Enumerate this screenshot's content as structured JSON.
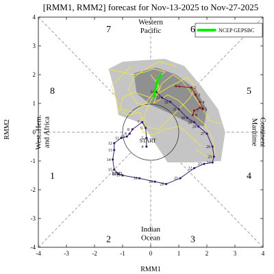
{
  "chart_data": {
    "type": "scatter",
    "title": "[RMM1, RMM2] forecast for Nov-13-2025 to Nov-27-2025",
    "xlabel": "RMM1",
    "ylabel": "RMM2",
    "xlim": [
      -4,
      4
    ],
    "ylim": [
      -4,
      4
    ],
    "xticks": [
      "-4",
      "-3",
      "-2",
      "-1",
      "0",
      "1",
      "2",
      "3",
      "4"
    ],
    "yticks": [
      "-4",
      "-3",
      "-2",
      "-1",
      "0",
      "1",
      "2",
      "3",
      "4"
    ],
    "phase_labels": [
      {
        "phase": "1",
        "x": -3.5,
        "y": -1.5
      },
      {
        "phase": "2",
        "x": -1.5,
        "y": -3.7
      },
      {
        "phase": "3",
        "x": 1.5,
        "y": -3.7
      },
      {
        "phase": "4",
        "x": 3.5,
        "y": -1.5
      },
      {
        "phase": "5",
        "x": 3.5,
        "y": 1.45
      },
      {
        "phase": "6",
        "x": 1.5,
        "y": 3.6
      },
      {
        "phase": "7",
        "x": -1.5,
        "y": 3.6
      },
      {
        "phase": "8",
        "x": -3.5,
        "y": 1.45
      }
    ],
    "region_labels": {
      "top": [
        "Western",
        "Pacific"
      ],
      "bottom": [
        "Indian",
        "Ocean"
      ],
      "left": [
        "West. Hem.",
        "and Africa"
      ],
      "right": [
        "Maritime",
        "Continent"
      ]
    },
    "legend": {
      "label": "NCEP GEPSBC",
      "color": "#00ee00",
      "position": "top-right"
    },
    "start_label": "START",
    "end_label": "END",
    "observed_series": {
      "name": "",
      "color": "#3a1a7a",
      "points": [
        {
          "label": "4",
          "x": -0.15,
          "y": -0.5
        },
        {
          "label": "5",
          "x": -0.15,
          "y": -0.2
        },
        {
          "label": "6",
          "x": -0.18,
          "y": 0.15
        },
        {
          "label": "7",
          "x": -0.3,
          "y": 0.35
        },
        {
          "label": "8",
          "x": -0.65,
          "y": 0.1
        },
        {
          "label": "9",
          "x": -0.75,
          "y": -0.05
        },
        {
          "label": "10",
          "x": -0.85,
          "y": -0.15
        },
        {
          "label": "11",
          "x": -1.05,
          "y": -0.2
        },
        {
          "label": "12",
          "x": -1.3,
          "y": -0.38
        },
        {
          "label": "13",
          "x": -1.3,
          "y": -0.62
        },
        {
          "label": "14",
          "x": -1.35,
          "y": -0.95
        },
        {
          "label": "15",
          "x": -1.3,
          "y": -1.3
        },
        {
          "label": "16",
          "x": -1.15,
          "y": -1.45
        },
        {
          "label": "17",
          "x": -1.0,
          "y": -1.5
        },
        {
          "label": "18",
          "x": -0.4,
          "y": -1.6
        },
        {
          "label": "19",
          "x": 0.15,
          "y": -1.72
        },
        {
          "label": "20",
          "x": 0.55,
          "y": -1.8
        },
        {
          "label": "21",
          "x": 1.05,
          "y": -1.6
        },
        {
          "label": "22",
          "x": 1.55,
          "y": -1.25
        },
        {
          "label": "23",
          "x": 1.9,
          "y": -1.1
        },
        {
          "label": "24",
          "x": 2.2,
          "y": -1.05
        },
        {
          "label": "25",
          "x": 2.25,
          "y": -0.85
        },
        {
          "label": "26",
          "x": 2.2,
          "y": -0.5
        },
        {
          "label": "27",
          "x": 2.0,
          "y": -0.05
        },
        {
          "label": "28",
          "x": 1.7,
          "y": 0.2
        },
        {
          "label": "29",
          "x": 1.55,
          "y": 0.35
        },
        {
          "label": "30",
          "x": 1.3,
          "y": 0.5
        },
        {
          "label": "31",
          "x": 1.0,
          "y": 0.8
        },
        {
          "label": "32",
          "x": 0.7,
          "y": 1.05
        },
        {
          "label": "33",
          "x": 0.4,
          "y": 1.2
        },
        {
          "label": "34",
          "x": 0.2,
          "y": 1.4
        }
      ]
    },
    "forecast_series": {
      "name": "",
      "color": "#8b1a1a",
      "points": [
        {
          "label": "1",
          "x": 0.9,
          "y": 1.6
        },
        {
          "label": "2",
          "x": 1.45,
          "y": 1.55
        },
        {
          "label": "3",
          "x": 1.6,
          "y": 1.3
        },
        {
          "label": "4",
          "x": 1.75,
          "y": 1.05
        },
        {
          "label": "5",
          "x": 1.85,
          "y": 0.8
        },
        {
          "label": "6",
          "x": 1.75,
          "y": 0.85
        },
        {
          "label": "7",
          "x": 1.55,
          "y": 0.75
        },
        {
          "label": "8",
          "x": 1.5,
          "y": 0.6
        }
      ]
    },
    "ensemble_mean": [
      {
        "x": 0.1,
        "y": 1.2
      },
      {
        "x": 0.15,
        "y": 1.45
      },
      {
        "x": 0.2,
        "y": 1.65
      },
      {
        "x": 0.25,
        "y": 1.8
      },
      {
        "x": 0.3,
        "y": 1.9
      },
      {
        "x": 0.35,
        "y": 1.95
      },
      {
        "x": 0.4,
        "y": 2.0
      }
    ],
    "outer_band": [
      [
        -1.5,
        2.2
      ],
      [
        -1.0,
        2.45
      ],
      [
        -0.3,
        2.5
      ],
      [
        0.5,
        2.55
      ],
      [
        1.2,
        2.3
      ],
      [
        1.8,
        1.6
      ],
      [
        2.4,
        0.8
      ],
      [
        2.65,
        0.0
      ],
      [
        2.5,
        -1.0
      ],
      [
        1.5,
        -1.05
      ],
      [
        0.6,
        -1.05
      ],
      [
        0.1,
        -0.3
      ],
      [
        -0.3,
        0.3
      ],
      [
        -1.15,
        0.6
      ],
      [
        -1.3,
        1.5
      ]
    ],
    "inner_band": [
      [
        -0.6,
        2.05
      ],
      [
        0.2,
        2.25
      ],
      [
        0.9,
        2.0
      ],
      [
        1.6,
        1.5
      ],
      [
        2.0,
        0.8
      ],
      [
        1.9,
        0.2
      ],
      [
        1.3,
        0.35
      ],
      [
        0.7,
        0.65
      ],
      [
        0.0,
        0.95
      ],
      [
        -0.5,
        1.35
      ]
    ],
    "ensemble_members": [
      [
        [
          -0.3,
          0.4
        ],
        [
          0.0,
          1.1
        ],
        [
          0.3,
          1.5
        ],
        [
          0.2,
          1.8
        ],
        [
          0.5,
          2.1
        ],
        [
          0.1,
          2.2
        ],
        [
          -0.2,
          2.1
        ],
        [
          -0.6,
          2.0
        ],
        [
          -1.1,
          2.1
        ],
        [
          -1.5,
          2.2
        ]
      ],
      [
        [
          -0.3,
          0.4
        ],
        [
          -0.4,
          0.7
        ],
        [
          -0.8,
          0.6
        ],
        [
          -1.15,
          0.75
        ],
        [
          -1.2,
          1.1
        ],
        [
          -1.4,
          1.6
        ],
        [
          -1.1,
          1.9
        ],
        [
          -0.7,
          2.3
        ]
      ],
      [
        [
          0.1,
          1.0
        ],
        [
          0.6,
          1.3
        ],
        [
          1.0,
          1.1
        ],
        [
          1.4,
          0.7
        ],
        [
          1.9,
          0.3
        ],
        [
          2.2,
          -0.2
        ],
        [
          2.3,
          -0.7
        ],
        [
          2.0,
          -0.85
        ],
        [
          1.6,
          -0.6
        ]
      ],
      [
        [
          0.1,
          1.0
        ],
        [
          0.4,
          1.7
        ],
        [
          0.8,
          2.0
        ],
        [
          1.1,
          1.8
        ],
        [
          1.5,
          1.3
        ],
        [
          1.8,
          0.9
        ],
        [
          2.1,
          0.4
        ],
        [
          2.5,
          0.3
        ]
      ],
      [
        [
          0.0,
          0.9
        ],
        [
          -0.5,
          1.0
        ],
        [
          -0.8,
          1.5
        ],
        [
          -0.6,
          1.9
        ],
        [
          -0.2,
          2.2
        ],
        [
          0.3,
          2.45
        ],
        [
          0.9,
          2.3
        ]
      ],
      [
        [
          -0.2,
          0.5
        ],
        [
          -0.3,
          0.0
        ],
        [
          0.1,
          -0.1
        ],
        [
          0.5,
          0.1
        ],
        [
          1.0,
          0.2
        ],
        [
          1.5,
          -0.2
        ],
        [
          1.8,
          -0.5
        ]
      ],
      [
        [
          0.2,
          1.3
        ],
        [
          0.7,
          1.6
        ],
        [
          1.3,
          1.9
        ],
        [
          1.6,
          1.6
        ],
        [
          1.4,
          1.2
        ],
        [
          1.0,
          0.8
        ],
        [
          0.6,
          0.4
        ],
        [
          0.3,
          0.1
        ],
        [
          -0.2,
          0.2
        ]
      ],
      [
        [
          0.0,
          1.2
        ],
        [
          -0.6,
          1.4
        ],
        [
          -1.0,
          1.2
        ],
        [
          -1.1,
          0.8
        ],
        [
          -0.6,
          0.7
        ],
        [
          -0.2,
          1.0
        ],
        [
          0.3,
          1.6
        ],
        [
          0.0,
          2.0
        ]
      ]
    ]
  }
}
